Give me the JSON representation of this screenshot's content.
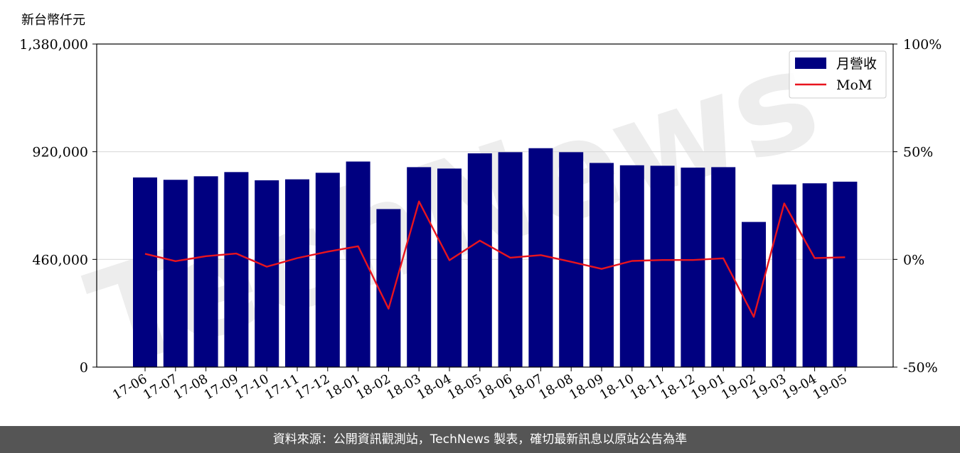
{
  "chart_data": {
    "type": "bar",
    "y_unit_label": "新台幣仟元",
    "categories": [
      "17-06",
      "17-07",
      "17-08",
      "17-09",
      "17-10",
      "17-11",
      "17-12",
      "18-01",
      "18-02",
      "18-03",
      "18-04",
      "18-05",
      "18-06",
      "18-07",
      "18-08",
      "18-09",
      "18-10",
      "18-11",
      "18-12",
      "19-01",
      "19-02",
      "19-03",
      "19-04",
      "19-05"
    ],
    "series": [
      {
        "name": "月營收",
        "axis": "left",
        "type": "bar",
        "color": "#000080",
        "values": [
          810000,
          800000,
          815000,
          833000,
          798000,
          802000,
          830000,
          878000,
          675000,
          854000,
          848000,
          913000,
          918000,
          935000,
          918000,
          872000,
          862000,
          860000,
          852000,
          854000,
          620000,
          780000,
          785000,
          792000
        ]
      },
      {
        "name": "MoM",
        "axis": "right",
        "type": "line",
        "color": "#e8141e",
        "values": [
          2.6,
          -0.8,
          1.5,
          2.7,
          -3.4,
          0.6,
          3.6,
          6.1,
          -22.9,
          26.9,
          -0.4,
          8.7,
          0.8,
          2.0,
          -1.1,
          -4.4,
          -0.7,
          -0.3,
          -0.3,
          0.5,
          -26.7,
          26.0,
          0.6,
          1.0
        ]
      }
    ],
    "y_left": {
      "min": 0,
      "max": 1380000,
      "ticks": [
        0,
        460000,
        920000,
        1380000
      ],
      "tick_labels": [
        "0",
        "460,000",
        "920,000",
        "1,380,000"
      ]
    },
    "y_right": {
      "min": -50,
      "max": 100,
      "ticks": [
        -50,
        0,
        50,
        100
      ],
      "tick_labels": [
        "-50%",
        "0%",
        "50%",
        "100%"
      ]
    },
    "grid": "horizontal",
    "legend_position": "top-right",
    "watermark": "TechNews"
  },
  "footer": {
    "text": "資料來源：公開資訊觀測站，TechNews 製表，確切最新訊息以原站公告為準"
  }
}
